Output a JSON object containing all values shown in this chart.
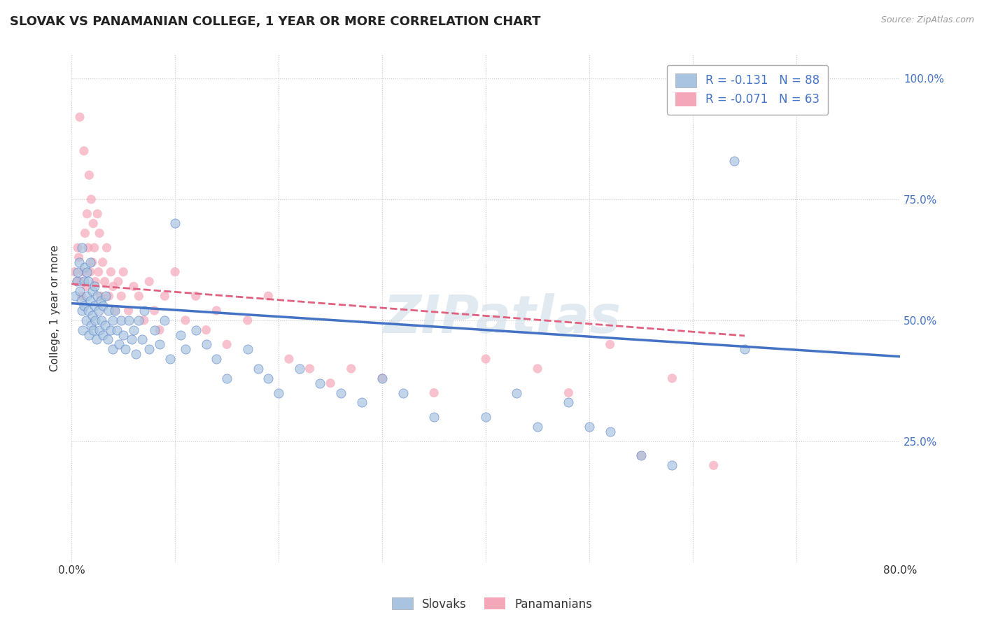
{
  "title": "SLOVAK VS PANAMANIAN COLLEGE, 1 YEAR OR MORE CORRELATION CHART",
  "source": "Source: ZipAtlas.com",
  "ylabel": "College, 1 year or more",
  "x_min": 0.0,
  "x_max": 0.8,
  "y_min": 0.0,
  "y_max": 1.05,
  "x_ticks": [
    0.0,
    0.1,
    0.2,
    0.3,
    0.4,
    0.5,
    0.6,
    0.7,
    0.8
  ],
  "x_tick_labels": [
    "0.0%",
    "",
    "",
    "",
    "",
    "",
    "",
    "",
    "80.0%"
  ],
  "y_ticks": [
    0.0,
    0.25,
    0.5,
    0.75,
    1.0
  ],
  "y_tick_labels_right": [
    "",
    "25.0%",
    "50.0%",
    "75.0%",
    "100.0%"
  ],
  "slovak_R": -0.131,
  "slovak_N": 88,
  "panamanian_R": -0.071,
  "panamanian_N": 63,
  "slovak_color": "#a8c4e0",
  "panamanian_color": "#f4a7b9",
  "slovak_line_color": "#4472c4",
  "panamanian_line_color": "#e06080",
  "legend_labels": [
    "Slovaks",
    "Panamanians"
  ],
  "watermark": "ZIPatlas",
  "background_color": "#ffffff",
  "grid_color": "#c8c8c8",
  "title_fontsize": 13,
  "axis_fontsize": 11,
  "legend_fontsize": 12,
  "marker_size": 90,
  "marker_alpha": 0.7,
  "slovak_line_start_y": 0.535,
  "slovak_line_end_y": 0.425,
  "slovak_line_x_end": 0.8,
  "panamanian_line_start_y": 0.575,
  "panamanian_line_end_y": 0.468,
  "panamanian_line_x_end": 0.65,
  "slovak_x": [
    0.003,
    0.005,
    0.006,
    0.007,
    0.008,
    0.009,
    0.01,
    0.01,
    0.011,
    0.012,
    0.012,
    0.013,
    0.014,
    0.015,
    0.015,
    0.016,
    0.016,
    0.017,
    0.018,
    0.018,
    0.019,
    0.02,
    0.02,
    0.021,
    0.022,
    0.022,
    0.023,
    0.024,
    0.025,
    0.026,
    0.027,
    0.028,
    0.029,
    0.03,
    0.03,
    0.032,
    0.033,
    0.035,
    0.036,
    0.038,
    0.04,
    0.04,
    0.042,
    0.044,
    0.046,
    0.048,
    0.05,
    0.052,
    0.055,
    0.058,
    0.06,
    0.062,
    0.065,
    0.068,
    0.07,
    0.075,
    0.08,
    0.085,
    0.09,
    0.095,
    0.1,
    0.105,
    0.11,
    0.12,
    0.13,
    0.14,
    0.15,
    0.17,
    0.18,
    0.19,
    0.2,
    0.22,
    0.24,
    0.26,
    0.28,
    0.3,
    0.32,
    0.35,
    0.4,
    0.43,
    0.45,
    0.48,
    0.5,
    0.52,
    0.55,
    0.58,
    0.64,
    0.65
  ],
  "slovak_y": [
    0.55,
    0.58,
    0.6,
    0.62,
    0.56,
    0.54,
    0.52,
    0.65,
    0.48,
    0.58,
    0.53,
    0.61,
    0.5,
    0.55,
    0.6,
    0.52,
    0.58,
    0.47,
    0.54,
    0.62,
    0.49,
    0.56,
    0.51,
    0.48,
    0.57,
    0.53,
    0.5,
    0.46,
    0.55,
    0.52,
    0.48,
    0.54,
    0.5,
    0.47,
    0.53,
    0.49,
    0.55,
    0.46,
    0.52,
    0.48,
    0.5,
    0.44,
    0.52,
    0.48,
    0.45,
    0.5,
    0.47,
    0.44,
    0.5,
    0.46,
    0.48,
    0.43,
    0.5,
    0.46,
    0.52,
    0.44,
    0.48,
    0.45,
    0.5,
    0.42,
    0.7,
    0.47,
    0.44,
    0.48,
    0.45,
    0.42,
    0.38,
    0.44,
    0.4,
    0.38,
    0.35,
    0.4,
    0.37,
    0.35,
    0.33,
    0.38,
    0.35,
    0.3,
    0.3,
    0.35,
    0.28,
    0.33,
    0.28,
    0.27,
    0.22,
    0.2,
    0.83,
    0.44
  ],
  "panamanian_x": [
    0.003,
    0.005,
    0.006,
    0.007,
    0.008,
    0.009,
    0.01,
    0.011,
    0.012,
    0.013,
    0.014,
    0.015,
    0.016,
    0.017,
    0.018,
    0.019,
    0.02,
    0.021,
    0.022,
    0.023,
    0.025,
    0.026,
    0.027,
    0.028,
    0.03,
    0.032,
    0.034,
    0.036,
    0.038,
    0.04,
    0.042,
    0.045,
    0.048,
    0.05,
    0.055,
    0.06,
    0.065,
    0.07,
    0.075,
    0.08,
    0.085,
    0.09,
    0.1,
    0.11,
    0.12,
    0.13,
    0.14,
    0.15,
    0.17,
    0.19,
    0.21,
    0.23,
    0.25,
    0.27,
    0.3,
    0.35,
    0.4,
    0.45,
    0.48,
    0.52,
    0.55,
    0.58,
    0.62
  ],
  "panamanian_y": [
    0.6,
    0.58,
    0.65,
    0.63,
    0.92,
    0.58,
    0.55,
    0.6,
    0.85,
    0.68,
    0.57,
    0.72,
    0.65,
    0.8,
    0.6,
    0.75,
    0.62,
    0.7,
    0.65,
    0.58,
    0.72,
    0.6,
    0.68,
    0.55,
    0.62,
    0.58,
    0.65,
    0.55,
    0.6,
    0.57,
    0.52,
    0.58,
    0.55,
    0.6,
    0.52,
    0.57,
    0.55,
    0.5,
    0.58,
    0.52,
    0.48,
    0.55,
    0.6,
    0.5,
    0.55,
    0.48,
    0.52,
    0.45,
    0.5,
    0.55,
    0.42,
    0.4,
    0.37,
    0.4,
    0.38,
    0.35,
    0.42,
    0.4,
    0.35,
    0.45,
    0.22,
    0.38,
    0.2
  ]
}
